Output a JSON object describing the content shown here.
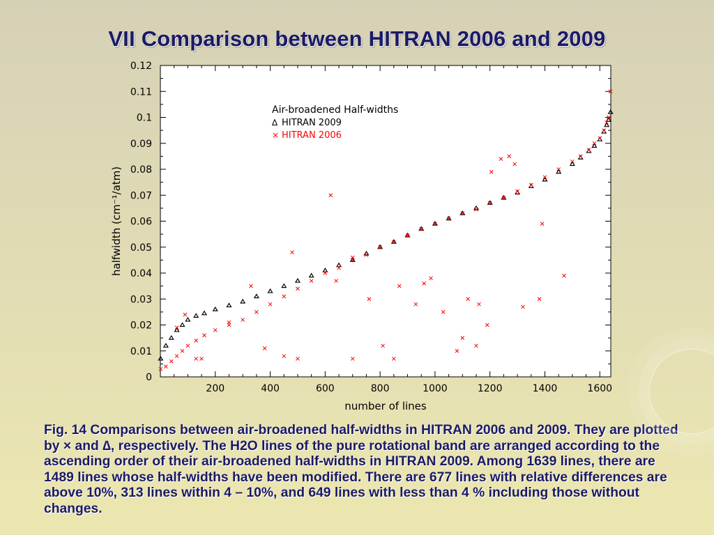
{
  "slide": {
    "title": "VII Comparison between HITRAN 2006 and 2009",
    "caption": "Fig. 14 Comparisons between air-broadened half-widths in HITRAN 2006 and 2009. They are plotted by × and ∆, respectively. The H2O lines of the pure rotational band are arranged according to the ascending order of their air-broadened half-widths in HITRAN 2009. Among 1639 lines, there are 1489 lines whose half-widths have been modified. There are 677 lines with relative differences are above 10%, 313 lines within 4 – 10%, and 649 lines with less than 4 % including those without changes."
  },
  "colors": {
    "title_text": "#1a1a66",
    "plot_background": "#ffffff",
    "hitran2009_markers": "#000000",
    "hitran2006_markers": "#ff0000"
  },
  "chart_data": {
    "type": "scatter",
    "xlabel": "number of lines",
    "ylabel": "halfwidth (cm⁻¹/atm)",
    "xlim": [
      0,
      1640
    ],
    "ylim": [
      0,
      0.12
    ],
    "x_ticks": [
      200,
      400,
      600,
      800,
      1000,
      1200,
      1400,
      1600
    ],
    "y_ticks": [
      0,
      0.01,
      0.02,
      0.03,
      0.04,
      0.05,
      0.06,
      0.07,
      0.08,
      0.09,
      0.1,
      0.11,
      0.12
    ],
    "y_tick_labels": [
      "0",
      "0.01",
      "0.02",
      "0.03",
      "0.04",
      "0.05",
      "0.06",
      "0.07",
      "0.08",
      "0.09",
      "0.1",
      "0.11",
      "0.12"
    ],
    "grid": false,
    "legend": {
      "title": "Air-broadened Half-widths",
      "position": "top-center",
      "entries": [
        {
          "marker": "∆",
          "label": "HITRAN 2009",
          "color": "#000000"
        },
        {
          "marker": "×",
          "label": "HITRAN 2006",
          "color": "#ff0000"
        }
      ]
    },
    "series": [
      {
        "name": "HITRAN 2009",
        "marker": "triangle",
        "color": "#000000",
        "x": [
          1,
          20,
          40,
          60,
          80,
          100,
          130,
          160,
          200,
          250,
          300,
          350,
          400,
          450,
          500,
          550,
          600,
          650,
          700,
          750,
          800,
          850,
          900,
          950,
          1000,
          1050,
          1100,
          1150,
          1200,
          1250,
          1300,
          1350,
          1400,
          1450,
          1500,
          1530,
          1560,
          1580,
          1600,
          1615,
          1625,
          1632,
          1639
        ],
        "y": [
          0.007,
          0.012,
          0.015,
          0.018,
          0.02,
          0.022,
          0.0235,
          0.0245,
          0.026,
          0.0275,
          0.029,
          0.031,
          0.033,
          0.035,
          0.037,
          0.039,
          0.041,
          0.043,
          0.045,
          0.0475,
          0.05,
          0.052,
          0.0545,
          0.057,
          0.059,
          0.061,
          0.063,
          0.065,
          0.067,
          0.069,
          0.071,
          0.0735,
          0.076,
          0.079,
          0.082,
          0.0845,
          0.087,
          0.089,
          0.0915,
          0.0945,
          0.097,
          0.099,
          0.102
        ]
      },
      {
        "name": "HITRAN 2006",
        "marker": "cross",
        "color": "#ff0000",
        "x": [
          1,
          20,
          40,
          60,
          80,
          100,
          130,
          160,
          200,
          250,
          300,
          350,
          400,
          450,
          500,
          550,
          600,
          650,
          700,
          750,
          800,
          850,
          900,
          950,
          1000,
          1050,
          1100,
          1150,
          1200,
          1250,
          1300,
          1350,
          1400,
          1450,
          1500,
          1530,
          1560,
          1580,
          1600,
          1615,
          1625,
          1632,
          1639,
          60,
          90,
          130,
          150,
          250,
          330,
          480,
          620,
          640,
          700,
          760,
          810,
          870,
          930,
          960,
          985,
          1030,
          1080,
          1120,
          1160,
          1190,
          1205,
          1240,
          1270,
          1290,
          1320,
          1380,
          1390,
          1470,
          1100,
          1150,
          700,
          850,
          500,
          450,
          380
        ],
        "y": [
          0.003,
          0.004,
          0.006,
          0.008,
          0.01,
          0.012,
          0.014,
          0.016,
          0.018,
          0.02,
          0.022,
          0.025,
          0.028,
          0.031,
          0.034,
          0.037,
          0.04,
          0.042,
          0.045,
          0.047,
          0.05,
          0.052,
          0.0545,
          0.057,
          0.059,
          0.061,
          0.063,
          0.0645,
          0.067,
          0.069,
          0.0715,
          0.074,
          0.077,
          0.08,
          0.083,
          0.085,
          0.0875,
          0.09,
          0.092,
          0.095,
          0.098,
          0.1,
          0.11,
          0.019,
          0.024,
          0.007,
          0.007,
          0.021,
          0.035,
          0.048,
          0.07,
          0.037,
          0.046,
          0.03,
          0.012,
          0.035,
          0.028,
          0.036,
          0.038,
          0.025,
          0.01,
          0.03,
          0.028,
          0.02,
          0.079,
          0.084,
          0.085,
          0.082,
          0.027,
          0.03,
          0.059,
          0.039,
          0.015,
          0.012,
          0.007,
          0.007,
          0.007,
          0.008,
          0.011
        ]
      }
    ]
  }
}
